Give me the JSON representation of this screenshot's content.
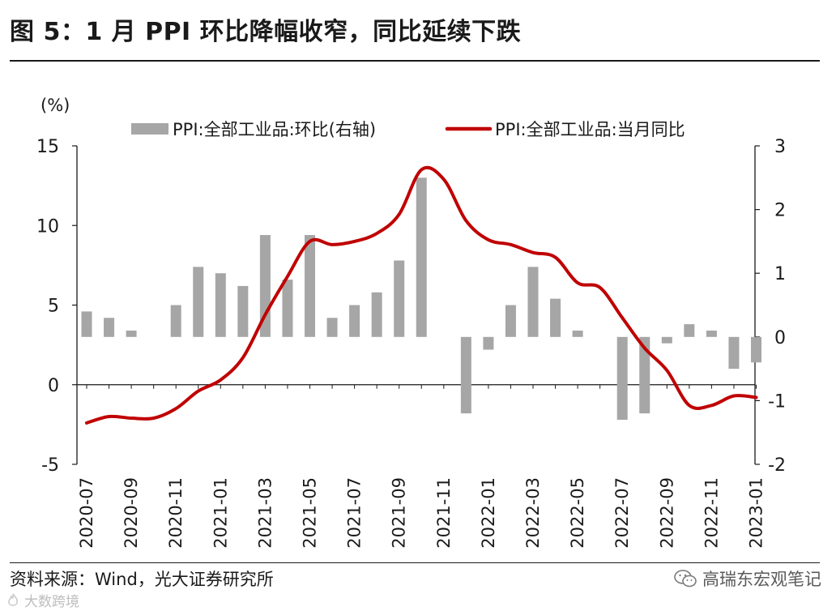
{
  "figure": {
    "title": "图 5：1 月 PPI 环比降幅收窄，同比延续下跌",
    "source": "资料来源：Wind，光大证券研究所",
    "watermark_right": "高瑞东宏观笔记",
    "watermark_left": "大数跨境",
    "watermark_left_icon": "flame-logo-icon",
    "wechat_icon": "wechat-icon"
  },
  "chart_data": {
    "type": "bar+line",
    "left_axis": {
      "label": "(%)",
      "range": [
        -5,
        15
      ],
      "ticks": [
        15,
        10,
        5,
        0,
        -5
      ]
    },
    "right_axis": {
      "label": "",
      "range": [
        -2,
        3
      ],
      "ticks": [
        3,
        2,
        1,
        0,
        -1,
        -2
      ]
    },
    "x_tick_labels": [
      "2020-07",
      "2020-09",
      "2020-11",
      "2021-01",
      "2021-03",
      "2021-05",
      "2021-07",
      "2021-09",
      "2021-11",
      "2022-01",
      "2022-03",
      "2022-05",
      "2022-07",
      "2022-09",
      "2022-11",
      "2023-01"
    ],
    "months": [
      "2020-07",
      "2020-08",
      "2020-09",
      "2020-10",
      "2020-11",
      "2020-12",
      "2021-01",
      "2021-02",
      "2021-03",
      "2021-04",
      "2021-05",
      "2021-06",
      "2021-07",
      "2021-08",
      "2021-09",
      "2021-10",
      "2021-11",
      "2021-12",
      "2022-01",
      "2022-02",
      "2022-03",
      "2022-04",
      "2022-05",
      "2022-06",
      "2022-07",
      "2022-08",
      "2022-09",
      "2022-10",
      "2022-11",
      "2022-12",
      "2023-01"
    ],
    "legend": {
      "bar": "PPI:全部工业品:环比(右轴)",
      "line": "PPI:全部工业品:当月同比"
    },
    "series": [
      {
        "name": "PPI:全部工业品:环比(右轴)",
        "type": "bar",
        "axis": "right",
        "color": "#a6a6a6",
        "values": [
          0.4,
          0.3,
          0.1,
          0.0,
          0.5,
          1.1,
          1.0,
          0.8,
          1.6,
          0.9,
          1.6,
          0.3,
          0.5,
          0.7,
          1.2,
          2.5,
          0.0,
          -1.2,
          -0.2,
          0.5,
          1.1,
          0.6,
          0.1,
          0.0,
          -1.3,
          -1.2,
          -0.1,
          0.2,
          0.1,
          -0.5,
          -0.4
        ]
      },
      {
        "name": "PPI:全部工业品:当月同比",
        "type": "line",
        "axis": "left",
        "color": "#c00000",
        "values": [
          -2.4,
          -2.0,
          -2.1,
          -2.1,
          -1.5,
          -0.4,
          0.3,
          1.7,
          4.4,
          6.8,
          9.0,
          8.8,
          9.0,
          9.5,
          10.7,
          13.5,
          12.9,
          10.3,
          9.1,
          8.8,
          8.3,
          8.0,
          6.4,
          6.1,
          4.2,
          2.3,
          0.9,
          -1.3,
          -1.3,
          -0.7,
          -0.8
        ]
      }
    ]
  }
}
